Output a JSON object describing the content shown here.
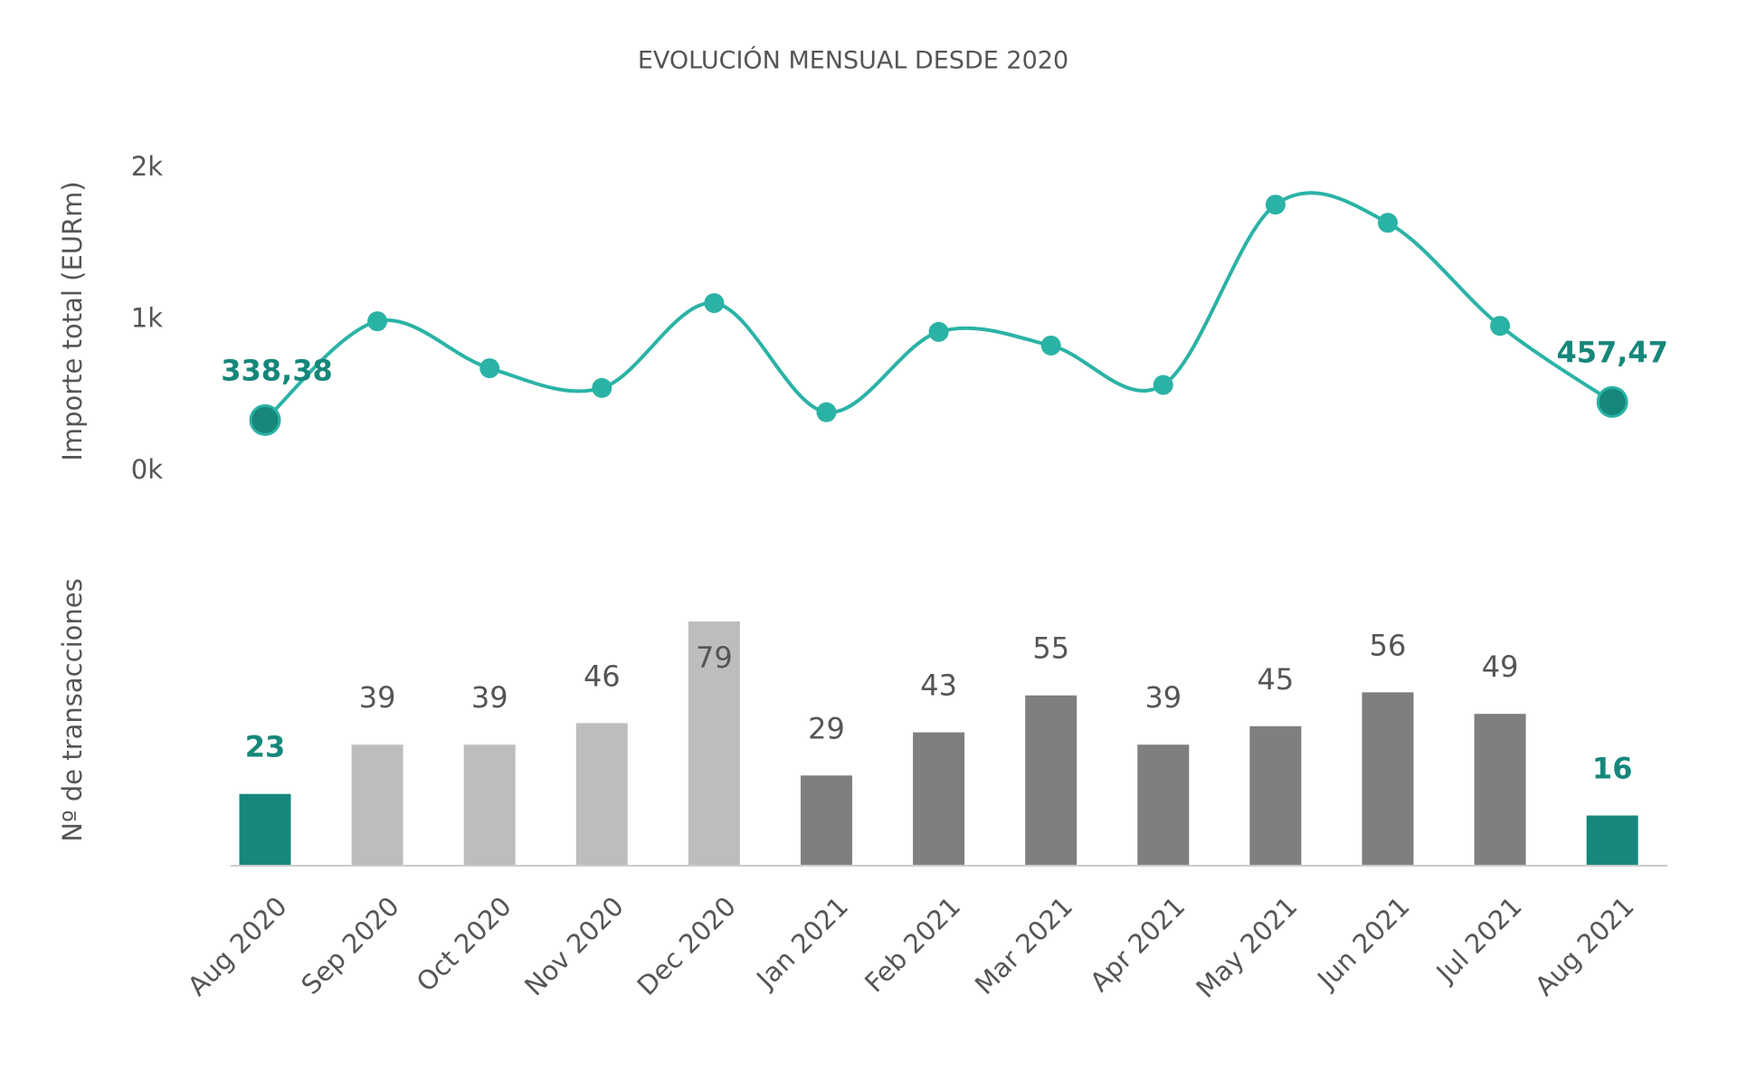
{
  "title": "EVOLUCIÓN MENSUAL DESDE 2020",
  "chart_data": [
    {
      "type": "line",
      "y_label": "Importe total (EURm)",
      "values": [
        338.38,
        990,
        680,
        550,
        1110,
        390,
        920,
        830,
        570,
        1760,
        1640,
        960,
        457.47
      ],
      "value_labels": [
        "338,38",
        null,
        null,
        null,
        null,
        null,
        null,
        null,
        null,
        null,
        null,
        null,
        "457,47"
      ],
      "color": "#2ab3a5",
      "highlight_color": "#16877a",
      "ylim": [
        0,
        2000
      ],
      "yticks": [
        {
          "value": 0,
          "label": "0k"
        },
        {
          "value": 1000,
          "label": "1k"
        },
        {
          "value": 2000,
          "label": "2k"
        }
      ],
      "grid": false
    },
    {
      "type": "bar",
      "y_label": "Nº de transacciones",
      "categories": [
        "Aug 2020",
        "Sep 2020",
        "Oct 2020",
        "Nov 2020",
        "Dec 2020",
        "Jan 2021",
        "Feb 2021",
        "Mar 2021",
        "Apr 2021",
        "May 2021",
        "Jun 2021",
        "Jul 2021",
        "Aug 2021"
      ],
      "values": [
        23,
        39,
        39,
        46,
        79,
        29,
        43,
        55,
        39,
        45,
        56,
        49,
        16
      ],
      "colors": [
        "#16877a",
        "#bdbdbd",
        "#bdbdbd",
        "#bdbdbd",
        "#bdbdbd",
        "#7f7f7f",
        "#7f7f7f",
        "#7f7f7f",
        "#7f7f7f",
        "#7f7f7f",
        "#7f7f7f",
        "#7f7f7f",
        "#16877a"
      ],
      "highlight_color": "#16877a",
      "ylim": [
        0,
        79
      ]
    }
  ]
}
